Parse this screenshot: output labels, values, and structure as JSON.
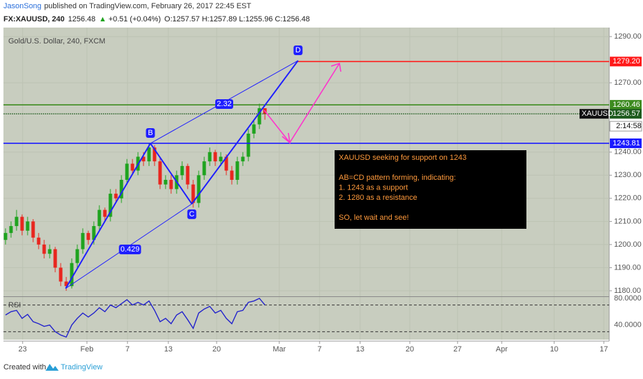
{
  "header": {
    "author": "JasonSong",
    "published": "published on TradingView.com, February 26, 2017 22:45 EST",
    "symbol": "FX:XAUUSD, 240",
    "last": "1256.48",
    "direction": "▲",
    "change": "+0.51 (+0.04%)",
    "ohlc": "O:1257.57 H:1257.89 L:1255.96 C:1256.48"
  },
  "chart_data": [
    {
      "type": "candlestick",
      "title": "Gold/U.S. Dollar, 240, FXCM",
      "xlim": [
        -0.375,
        109.375
      ],
      "xticks": [
        {
          "value": 3.1,
          "label": "23"
        },
        {
          "value": 14.75,
          "label": "Feb"
        },
        {
          "value": 22.1,
          "label": "7"
        },
        {
          "value": 29.5,
          "label": "13"
        },
        {
          "value": 38.25,
          "label": "20"
        },
        {
          "value": 49.6,
          "label": "Mar"
        },
        {
          "value": 56.9,
          "label": "7"
        },
        {
          "value": 64.25,
          "label": "13"
        },
        {
          "value": 73.25,
          "label": "20"
        },
        {
          "value": 81.9,
          "label": "27"
        },
        {
          "value": 89.9,
          "label": "Apr"
        },
        {
          "value": 99.4,
          "label": "10"
        },
        {
          "value": 108.4,
          "label": "17"
        }
      ],
      "ylim": [
        1177.6,
        1293.9
      ],
      "yticks": [
        {
          "value": 1290,
          "label": "1290.00"
        },
        {
          "value": 1270,
          "label": "1270.00"
        },
        {
          "value": 1240,
          "label": "1240.00"
        },
        {
          "value": 1230,
          "label": "1230.00"
        },
        {
          "value": 1220,
          "label": "1220.00"
        },
        {
          "value": 1210,
          "label": "1210.00"
        },
        {
          "value": 1200,
          "label": "1200.00"
        },
        {
          "value": 1190,
          "label": "1190.00"
        },
        {
          "value": 1180,
          "label": "1180.00"
        }
      ],
      "grid": true,
      "up_color": "#1fa31f",
      "down_color": "#e8261f",
      "open": [
        1202,
        1205,
        1208,
        1212,
        1206,
        1210,
        1203,
        1200,
        1196,
        1198,
        1190,
        1184,
        1182,
        1192,
        1198,
        1205,
        1202,
        1208,
        1215,
        1212,
        1222,
        1220,
        1228,
        1235,
        1232,
        1238,
        1236,
        1242,
        1236,
        1226,
        1228,
        1224,
        1230,
        1234,
        1226,
        1218,
        1230,
        1236,
        1240,
        1236,
        1238,
        1232,
        1228,
        1236,
        1238,
        1248,
        1252,
        1259
      ],
      "high": [
        1207,
        1210,
        1215,
        1213,
        1212,
        1211,
        1205,
        1202,
        1200,
        1199,
        1192,
        1186,
        1194,
        1200,
        1207,
        1206,
        1210,
        1217,
        1216,
        1224,
        1224,
        1230,
        1237,
        1237,
        1240,
        1240,
        1244,
        1243,
        1238,
        1230,
        1230,
        1232,
        1236,
        1235,
        1228,
        1232,
        1238,
        1242,
        1241,
        1240,
        1239,
        1234,
        1238,
        1240,
        1250,
        1254,
        1261,
        1259
      ],
      "low": [
        1200,
        1203,
        1206,
        1204,
        1204,
        1201,
        1198,
        1194,
        1194,
        1188,
        1182,
        1180,
        1181,
        1190,
        1196,
        1200,
        1200,
        1206,
        1210,
        1210,
        1218,
        1218,
        1226,
        1230,
        1230,
        1234,
        1234,
        1234,
        1224,
        1224,
        1222,
        1222,
        1228,
        1224,
        1216,
        1216,
        1228,
        1234,
        1234,
        1234,
        1230,
        1226,
        1226,
        1234,
        1236,
        1246,
        1250,
        1254
      ],
      "close": [
        1205,
        1208,
        1212,
        1206,
        1210,
        1203,
        1200,
        1196,
        1198,
        1190,
        1184,
        1182,
        1192,
        1198,
        1205,
        1202,
        1208,
        1215,
        1212,
        1222,
        1220,
        1228,
        1235,
        1232,
        1238,
        1236,
        1242,
        1236,
        1226,
        1228,
        1224,
        1230,
        1234,
        1226,
        1218,
        1230,
        1236,
        1240,
        1236,
        1238,
        1232,
        1228,
        1236,
        1238,
        1248,
        1252,
        1259,
        1256.48
      ],
      "levels": [
        {
          "value": 1279.2,
          "label": "1279.20",
          "color": "#ff1a1a"
        },
        {
          "value": 1260.46,
          "color": "#3d8b1f"
        },
        {
          "value": 1256.57,
          "color": "#1f5c1f"
        },
        {
          "value": 1243.81,
          "color": "#1a1aff"
        }
      ],
      "price_tag": "XAUUSD",
      "countdown": "2:14:58",
      "pattern": {
        "color": "#1f1fff",
        "points": [
          {
            "x": 10.9,
            "y": 1181
          },
          {
            "x": 26.25,
            "y": 1243.8,
            "label": "B"
          },
          {
            "x": 33.75,
            "y": 1217.6,
            "label": "C"
          },
          {
            "x": 53,
            "y": 1279.6,
            "label": "D"
          }
        ],
        "ratios": [
          "2.32",
          "0.429"
        ]
      }
    },
    {
      "type": "line",
      "title": "RSI",
      "color": "#2222cc",
      "ylim": [
        18,
        82
      ],
      "yticks": [
        {
          "value": 80,
          "label": "80.0000"
        },
        {
          "value": 40,
          "label": "40.0000"
        }
      ],
      "bands": [
        70,
        30
      ],
      "values": [
        55,
        60,
        62,
        50,
        56,
        45,
        42,
        38,
        40,
        30,
        25,
        22,
        40,
        50,
        58,
        52,
        58,
        66,
        60,
        70,
        66,
        72,
        78,
        70,
        74,
        70,
        76,
        62,
        45,
        50,
        42,
        55,
        60,
        48,
        35,
        58,
        64,
        68,
        58,
        62,
        50,
        42,
        60,
        62,
        74,
        76,
        80,
        70
      ]
    }
  ],
  "annotation": {
    "groups": [
      [
        "XAUUSD seeking for support on 1243"
      ],
      [
        "AB=CD pattern forming, indicating:",
        "1. 1243 as a support",
        "2. 1280 as a resistance"
      ],
      [
        "SO, let wait and see!"
      ]
    ]
  },
  "footer": {
    "created": "Created with",
    "brand": "TradingView"
  }
}
